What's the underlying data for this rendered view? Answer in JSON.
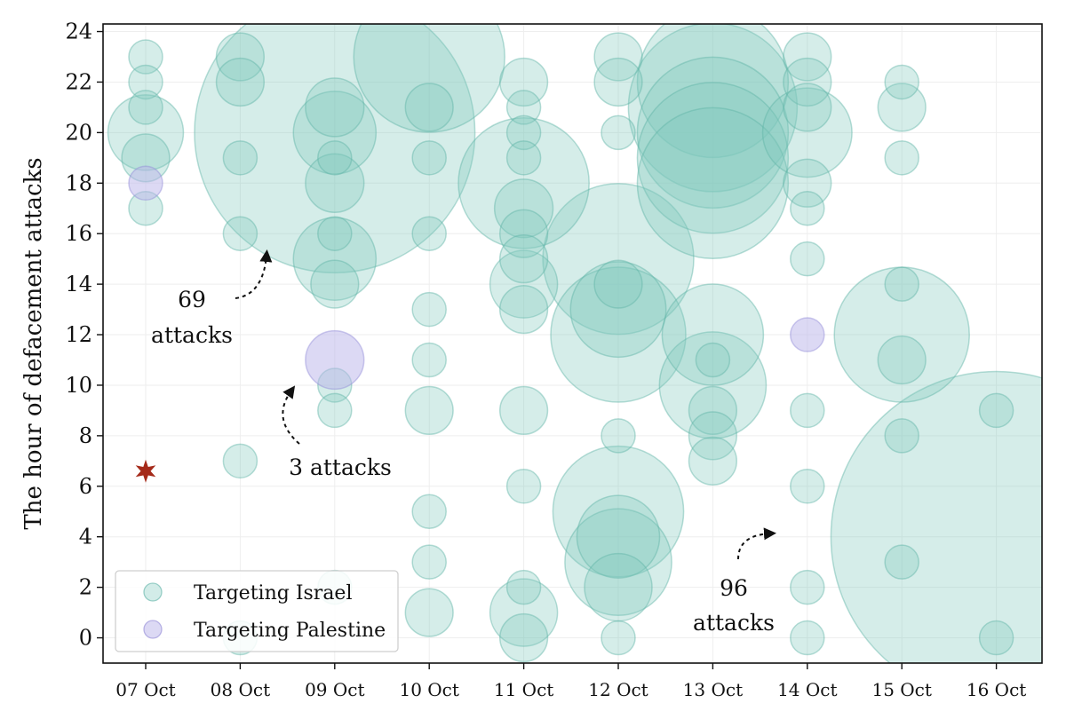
{
  "chart_data": {
    "type": "scatter",
    "subtype": "bubble",
    "title": "",
    "xlabel": "",
    "ylabel": "The hour of defacement attacks",
    "categories": [
      "07 Oct",
      "08 Oct",
      "09 Oct",
      "10 Oct",
      "11 Oct",
      "12 Oct",
      "13 Oct",
      "14 Oct",
      "15 Oct",
      "16 Oct"
    ],
    "ylim": [
      -1,
      24.3
    ],
    "yticks": [
      0,
      2,
      4,
      6,
      8,
      10,
      12,
      14,
      16,
      18,
      20,
      22,
      24
    ],
    "grid": true,
    "legend_position": "bottom-left",
    "colors": {
      "israel_fill": "#7fc8bd",
      "israel_edge": "#5fb3a6",
      "palestine_fill": "#b9b4ea",
      "palestine_edge": "#9189d6",
      "marker": "#a52a1a"
    },
    "series": [
      {
        "name": "Targeting Israel",
        "points": [
          {
            "x": 0,
            "y": 23,
            "n": 1
          },
          {
            "x": 0,
            "y": 22,
            "n": 1
          },
          {
            "x": 0,
            "y": 21,
            "n": 1
          },
          {
            "x": 0,
            "y": 20,
            "n": 5
          },
          {
            "x": 0,
            "y": 19,
            "n": 2
          },
          {
            "x": 0,
            "y": 17,
            "n": 1
          },
          {
            "x": 1,
            "y": 23,
            "n": 2
          },
          {
            "x": 1,
            "y": 22,
            "n": 2
          },
          {
            "x": 1,
            "y": 19,
            "n": 1
          },
          {
            "x": 1,
            "y": 16,
            "n": 1
          },
          {
            "x": 1,
            "y": 7,
            "n": 1
          },
          {
            "x": 1,
            "y": 0,
            "n": 1
          },
          {
            "x": 2,
            "y": 20,
            "n": 69
          },
          {
            "x": 2,
            "y": 21,
            "n": 3
          },
          {
            "x": 2,
            "y": 20,
            "n": 6
          },
          {
            "x": 2,
            "y": 19,
            "n": 1
          },
          {
            "x": 2,
            "y": 18,
            "n": 3
          },
          {
            "x": 2,
            "y": 16,
            "n": 1
          },
          {
            "x": 2,
            "y": 15,
            "n": 6
          },
          {
            "x": 2,
            "y": 14,
            "n": 2
          },
          {
            "x": 2,
            "y": 10,
            "n": 1
          },
          {
            "x": 2,
            "y": 9,
            "n": 1
          },
          {
            "x": 2,
            "y": 2,
            "n": 1
          },
          {
            "x": 3,
            "y": 23,
            "n": 20
          },
          {
            "x": 3,
            "y": 21,
            "n": 2
          },
          {
            "x": 3,
            "y": 19,
            "n": 1
          },
          {
            "x": 3,
            "y": 16,
            "n": 1
          },
          {
            "x": 3,
            "y": 13,
            "n": 1
          },
          {
            "x": 3,
            "y": 11,
            "n": 1
          },
          {
            "x": 3,
            "y": 9,
            "n": 2
          },
          {
            "x": 3,
            "y": 5,
            "n": 1
          },
          {
            "x": 3,
            "y": 3,
            "n": 1
          },
          {
            "x": 3,
            "y": 1,
            "n": 2
          },
          {
            "x": 4,
            "y": 22,
            "n": 2
          },
          {
            "x": 4,
            "y": 21,
            "n": 1
          },
          {
            "x": 4,
            "y": 20,
            "n": 1
          },
          {
            "x": 4,
            "y": 19,
            "n": 1
          },
          {
            "x": 4,
            "y": 18,
            "n": 15
          },
          {
            "x": 4,
            "y": 17,
            "n": 3
          },
          {
            "x": 4,
            "y": 16,
            "n": 2
          },
          {
            "x": 4,
            "y": 15,
            "n": 2
          },
          {
            "x": 4,
            "y": 14,
            "n": 4
          },
          {
            "x": 4,
            "y": 13,
            "n": 2
          },
          {
            "x": 4,
            "y": 9,
            "n": 2
          },
          {
            "x": 4,
            "y": 6,
            "n": 1
          },
          {
            "x": 4,
            "y": 2,
            "n": 1
          },
          {
            "x": 4,
            "y": 1,
            "n": 4
          },
          {
            "x": 4,
            "y": 0,
            "n": 2
          },
          {
            "x": 5,
            "y": 23,
            "n": 2
          },
          {
            "x": 5,
            "y": 22,
            "n": 2
          },
          {
            "x": 5,
            "y": 20,
            "n": 1
          },
          {
            "x": 5,
            "y": 15,
            "n": 20
          },
          {
            "x": 5,
            "y": 14,
            "n": 2
          },
          {
            "x": 5,
            "y": 13,
            "n": 8
          },
          {
            "x": 5,
            "y": 12,
            "n": 16
          },
          {
            "x": 5,
            "y": 8,
            "n": 1
          },
          {
            "x": 5,
            "y": 5,
            "n": 15
          },
          {
            "x": 5,
            "y": 4,
            "n": 6
          },
          {
            "x": 5,
            "y": 3,
            "n": 10
          },
          {
            "x": 5,
            "y": 2,
            "n": 4
          },
          {
            "x": 5,
            "y": 0,
            "n": 1
          },
          {
            "x": 6,
            "y": 22,
            "n": 20
          },
          {
            "x": 6,
            "y": 21,
            "n": 25
          },
          {
            "x": 6,
            "y": 20,
            "n": 20
          },
          {
            "x": 6,
            "y": 19,
            "n": 20
          },
          {
            "x": 6,
            "y": 18,
            "n": 20
          },
          {
            "x": 6,
            "y": 12,
            "n": 9
          },
          {
            "x": 6,
            "y": 11,
            "n": 1
          },
          {
            "x": 6,
            "y": 10,
            "n": 10
          },
          {
            "x": 6,
            "y": 9,
            "n": 2
          },
          {
            "x": 6,
            "y": 8,
            "n": 2
          },
          {
            "x": 6,
            "y": 7,
            "n": 2
          },
          {
            "x": 7,
            "y": 23,
            "n": 2
          },
          {
            "x": 7,
            "y": 22,
            "n": 2
          },
          {
            "x": 7,
            "y": 21,
            "n": 2
          },
          {
            "x": 7,
            "y": 20,
            "n": 7
          },
          {
            "x": 7,
            "y": 18,
            "n": 2
          },
          {
            "x": 7,
            "y": 17,
            "n": 1
          },
          {
            "x": 7,
            "y": 15,
            "n": 1
          },
          {
            "x": 7,
            "y": 9,
            "n": 1
          },
          {
            "x": 7,
            "y": 6,
            "n": 1
          },
          {
            "x": 7,
            "y": 2,
            "n": 1
          },
          {
            "x": 7,
            "y": 0,
            "n": 1
          },
          {
            "x": 8,
            "y": 22,
            "n": 1
          },
          {
            "x": 8,
            "y": 21,
            "n": 2
          },
          {
            "x": 8,
            "y": 19,
            "n": 1
          },
          {
            "x": 8,
            "y": 14,
            "n": 1
          },
          {
            "x": 8,
            "y": 12,
            "n": 16
          },
          {
            "x": 8,
            "y": 11,
            "n": 2
          },
          {
            "x": 8,
            "y": 8,
            "n": 1
          },
          {
            "x": 8,
            "y": 3,
            "n": 1
          },
          {
            "x": 9,
            "y": 9,
            "n": 1
          },
          {
            "x": 9,
            "y": 0,
            "n": 1
          },
          {
            "x": 9,
            "y": 4,
            "n": 96
          }
        ]
      },
      {
        "name": "Targeting Palestine",
        "points": [
          {
            "x": 0,
            "y": 18,
            "n": 1
          },
          {
            "x": 2,
            "y": 11,
            "n": 3
          },
          {
            "x": 7,
            "y": 12,
            "n": 1
          }
        ]
      }
    ],
    "special_marker": {
      "x": 0,
      "y": 6.6,
      "shape": "star"
    },
    "annotations": [
      {
        "lines": [
          "69",
          "attacks"
        ]
      },
      {
        "lines": [
          "3 attacks"
        ]
      },
      {
        "lines": [
          "96",
          "attacks"
        ]
      }
    ]
  }
}
